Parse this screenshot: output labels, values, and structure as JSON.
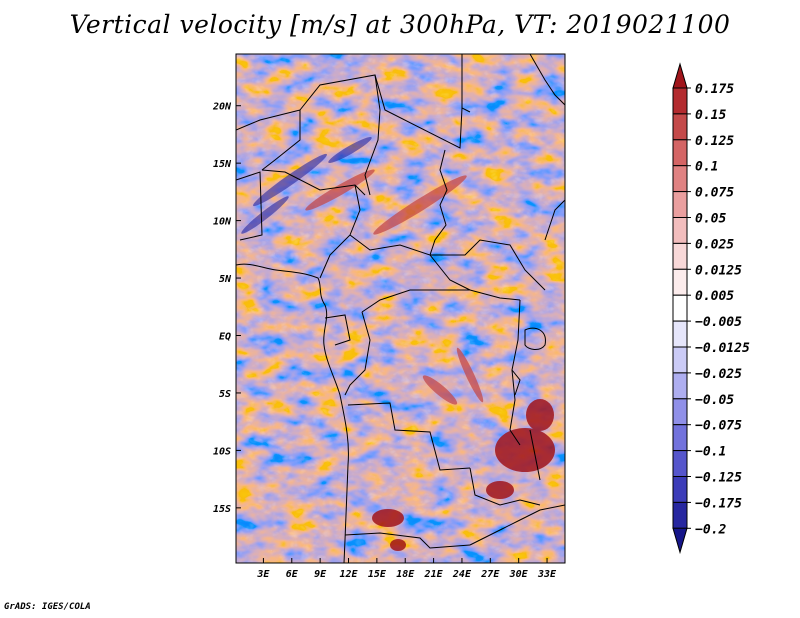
{
  "title": "Vertical velocity [m/s] at 300hPa, VT: 2019021100",
  "credit": "GrADS: IGES/COLA",
  "map": {
    "lat_labels": [
      {
        "lat": 20,
        "label": "20N"
      },
      {
        "lat": 15,
        "label": "15N"
      },
      {
        "lat": 10,
        "label": "10N"
      },
      {
        "lat": 5,
        "label": "5N"
      },
      {
        "lat": 0,
        "label": "EQ"
      },
      {
        "lat": -5,
        "label": "5S"
      },
      {
        "lat": -10,
        "label": "10S"
      },
      {
        "lat": -15,
        "label": "15S"
      }
    ],
    "lon_labels": [
      {
        "lon": 3,
        "label": "3E"
      },
      {
        "lon": 6,
        "label": "6E"
      },
      {
        "lon": 9,
        "label": "9E"
      },
      {
        "lon": 12,
        "label": "12E"
      },
      {
        "lon": 15,
        "label": "15E"
      },
      {
        "lon": 18,
        "label": "18E"
      },
      {
        "lon": 21,
        "label": "21E"
      },
      {
        "lon": 24,
        "label": "24E"
      },
      {
        "lon": 27,
        "label": "27E"
      },
      {
        "lon": 30,
        "label": "30E"
      },
      {
        "lon": 33,
        "label": "33E"
      }
    ],
    "lat_range": [
      -19.8,
      24.5
    ],
    "lon_range": [
      0.1,
      34.9
    ]
  },
  "colorbar": {
    "levels": [
      "0.175",
      "0.15",
      "0.125",
      "0.1",
      "0.075",
      "0.05",
      "0.025",
      "0.0125",
      "0.005",
      "−0.005",
      "−0.0125",
      "−0.025",
      "−0.05",
      "−0.075",
      "−0.1",
      "−0.125",
      "−0.175",
      "−0.2"
    ],
    "colors": [
      "#a0151b",
      "#b32b2f",
      "#c44a4a",
      "#d46565",
      "#e08282",
      "#ea9f9f",
      "#f2bdbd",
      "#f8d8d8",
      "#fcecec",
      "#ffffff",
      "#e6e6fb",
      "#cbcbf6",
      "#aeaef0",
      "#9090e8",
      "#7272dc",
      "#5656cc",
      "#3c3cb8",
      "#2727a0",
      "#16168a"
    ],
    "top_color": "#a0151b",
    "bottom_color": "#16168a"
  }
}
